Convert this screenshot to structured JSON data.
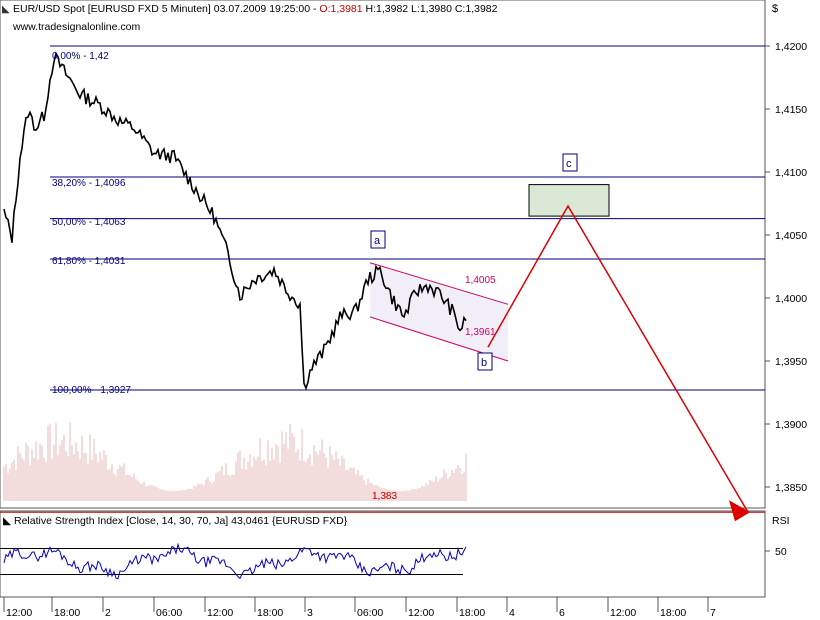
{
  "header": {
    "title_text": "EUR/USD Spot [EURUSD FXD  5 Minuten] 03.07.2009 19:25:00 - ",
    "ohlc_o": "O:1,3981",
    "ohlc_rest": " H:1,3982 L:1,3980 C:1,3982",
    "website": "www.tradesignalonline.com",
    "currency_symbol": "$"
  },
  "rsi_panel": {
    "label": "Relative Strength Index [Close, 14, 30, 70, Ja] 43,0461 {EURUSD FXD}",
    "axis_title": "RSI",
    "tick": "50"
  },
  "annotations": {
    "fib_labels": [
      "0,00% - 1,42",
      "38,20% - 1,4096",
      "50,00% - 1,4063",
      "61,80% - 1,4031",
      "100,00% - 1,3927"
    ],
    "channel_upper": "1,4005",
    "channel_lower": "1,3961",
    "wave_a": "a",
    "wave_b": "b",
    "wave_c": "c",
    "target_level": "1,383"
  },
  "chart_data": {
    "type": "line",
    "title": "EUR/USD Spot [EURUSD FXD  5 Minuten] 03.07.2009 19:25:00",
    "x_ticks": [
      "12:00",
      "18:00",
      "2",
      "06:00",
      "12:00",
      "18:00",
      "3",
      "06:00",
      "12:00",
      "18:00",
      "4",
      "6",
      "12:00",
      "18:00",
      "7"
    ],
    "y_ticks": [
      "1,4200",
      "1,4150",
      "1,4100",
      "1,4050",
      "1,4000",
      "1,3950",
      "1,3900",
      "1,3850"
    ],
    "ylim": [
      1.3828,
      1.4234
    ],
    "fibonacci_levels": [
      {
        "label": "0,00%",
        "value": 1.42
      },
      {
        "label": "38,20%",
        "value": 1.4096
      },
      {
        "label": "50,00%",
        "value": 1.4063
      },
      {
        "label": "61,80%",
        "value": 1.4031
      },
      {
        "label": "100,00%",
        "value": 1.3927
      }
    ],
    "support_line": 1.383,
    "price_path": [
      {
        "bar": 0,
        "price": 1.4068
      },
      {
        "bar": 4,
        "price": 1.4048
      },
      {
        "bar": 8,
        "price": 1.4112
      },
      {
        "bar": 12,
        "price": 1.4148
      },
      {
        "bar": 16,
        "price": 1.4135
      },
      {
        "bar": 20,
        "price": 1.4145
      },
      {
        "bar": 25,
        "price": 1.4192
      },
      {
        "bar": 30,
        "price": 1.418
      },
      {
        "bar": 38,
        "price": 1.4162
      },
      {
        "bar": 48,
        "price": 1.4153
      },
      {
        "bar": 58,
        "price": 1.414
      },
      {
        "bar": 65,
        "price": 1.4135
      },
      {
        "bar": 75,
        "price": 1.4115
      },
      {
        "bar": 85,
        "price": 1.4112
      },
      {
        "bar": 95,
        "price": 1.4088
      },
      {
        "bar": 105,
        "price": 1.4065
      },
      {
        "bar": 112,
        "price": 1.4035
      },
      {
        "bar": 118,
        "price": 1.4002
      },
      {
        "bar": 125,
        "price": 1.4015
      },
      {
        "bar": 135,
        "price": 1.4022
      },
      {
        "bar": 142,
        "price": 1.4005
      },
      {
        "bar": 148,
        "price": 1.3995
      },
      {
        "bar": 150,
        "price": 1.393
      },
      {
        "bar": 154,
        "price": 1.3945
      },
      {
        "bar": 160,
        "price": 1.3958
      },
      {
        "bar": 168,
        "price": 1.3985
      },
      {
        "bar": 176,
        "price": 1.399
      },
      {
        "bar": 182,
        "price": 1.4015
      },
      {
        "bar": 188,
        "price": 1.4022
      },
      {
        "bar": 194,
        "price": 1.4
      },
      {
        "bar": 200,
        "price": 1.3985
      },
      {
        "bar": 206,
        "price": 1.4005
      },
      {
        "bar": 212,
        "price": 1.401
      },
      {
        "bar": 218,
        "price": 1.4003
      },
      {
        "bar": 224,
        "price": 1.399
      },
      {
        "bar": 228,
        "price": 1.3975
      },
      {
        "bar": 231,
        "price": 1.3982
      }
    ],
    "forecast_path": [
      1.3961,
      1.4073,
      1.383
    ],
    "target_box": [
      1.4065,
      1.409
    ],
    "channel_upper_endpoints": [
      1.4028,
      1.3995
    ],
    "channel_lower_endpoints": [
      1.3985,
      1.395
    ],
    "rsi": {
      "range": [
        0,
        100
      ],
      "bands": [
        30,
        70
      ],
      "current": 43.0461
    }
  },
  "colors": {
    "price": "#000000",
    "fib": "#000080",
    "channel": "#cc0066",
    "forecast": "#dd0000",
    "volume": "#e6b8b8",
    "rsi_line": "#0000cc",
    "grid": "#888888"
  }
}
